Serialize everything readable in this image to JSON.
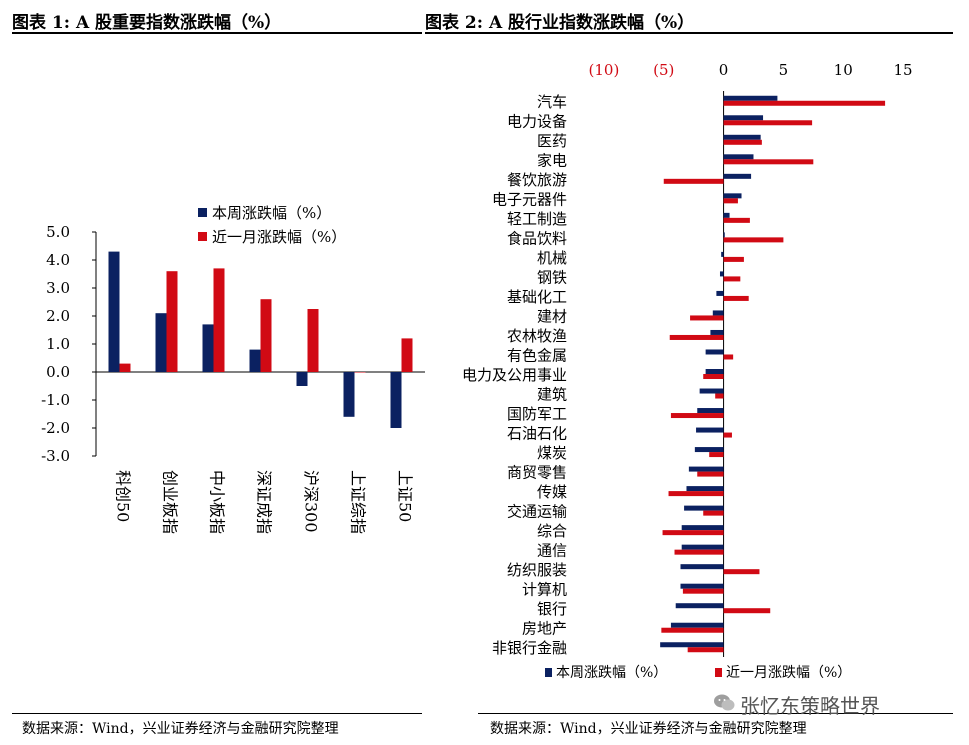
{
  "titles": {
    "left": "图表 1:  A 股重要指数涨跌幅（%）",
    "right": "图表 2:  A 股行业指数涨跌幅（%）"
  },
  "sources": {
    "left": "数据来源：Wind，兴业证券经济与金融研究院整理",
    "right": "数据来源：Wind，兴业证券经济与金融研究院整理"
  },
  "watermark": {
    "text": "张忆东策略世界",
    "icon": "wechat-icon"
  },
  "colors": {
    "weekly": "#0b2161",
    "monthly": "#d10a14",
    "negative_tick": "#d10a14"
  },
  "chart_data": [
    {
      "type": "bar",
      "categories": [
        "科创50",
        "创业板指",
        "中小板指",
        "深证成指",
        "沪深300",
        "上证综指",
        "上证50"
      ],
      "series": [
        {
          "name": "本周涨跌幅（%）",
          "values": [
            4.3,
            2.1,
            1.7,
            0.8,
            -0.5,
            -1.6,
            -2.0
          ]
        },
        {
          "name": "近一月涨跌幅（%）",
          "values": [
            0.3,
            3.6,
            3.7,
            2.6,
            2.25,
            0.0,
            1.2
          ]
        }
      ],
      "yticks": [
        "5.0",
        "4.0",
        "3.0",
        "2.0",
        "1.0",
        "0.0",
        "-1.0",
        "-2.0",
        "-3.0"
      ],
      "ylim": [
        -3,
        5
      ],
      "legend": "top-right",
      "grid": false
    },
    {
      "type": "bar",
      "orientation": "horizontal",
      "categories": [
        "汽车",
        "电力设备",
        "医药",
        "家电",
        "餐饮旅游",
        "电子元器件",
        "轻工制造",
        "食品饮料",
        "机械",
        "钢铁",
        "基础化工",
        "建材",
        "农林牧渔",
        "有色金属",
        "电力及公用事业",
        "建筑",
        "国防军工",
        "石油石化",
        "煤炭",
        "商贸零售",
        "传媒",
        "交通运输",
        "综合",
        "通信",
        "纺织服装",
        "计算机",
        "银行",
        "房地产",
        "非银行金融"
      ],
      "series": [
        {
          "name": "本周涨跌幅（%）",
          "values": [
            4.5,
            3.3,
            3.1,
            2.5,
            2.3,
            1.5,
            0.5,
            0.1,
            -0.2,
            -0.3,
            -0.6,
            -0.9,
            -1.1,
            -1.5,
            -1.5,
            -2.0,
            -2.2,
            -2.3,
            -2.4,
            -2.9,
            -3.1,
            -3.3,
            -3.5,
            -3.5,
            -3.6,
            -3.6,
            -4.0,
            -4.4,
            -5.3
          ]
        },
        {
          "name": "近一月涨跌幅（%）",
          "values": [
            13.5,
            7.4,
            3.2,
            7.5,
            -5.0,
            1.2,
            2.2,
            5.0,
            1.7,
            1.4,
            2.1,
            -2.8,
            -4.5,
            0.8,
            -1.7,
            -0.7,
            -4.4,
            0.7,
            -1.2,
            -2.2,
            -4.6,
            -1.7,
            -5.1,
            -4.1,
            3.0,
            -3.4,
            3.9,
            -5.2,
            -3.0
          ]
        }
      ],
      "xticks": [
        "(10)",
        "(5)",
        "0",
        "5",
        "10",
        "15"
      ],
      "xlim": [
        -12,
        16
      ],
      "legend": "bottom",
      "grid": false
    }
  ]
}
